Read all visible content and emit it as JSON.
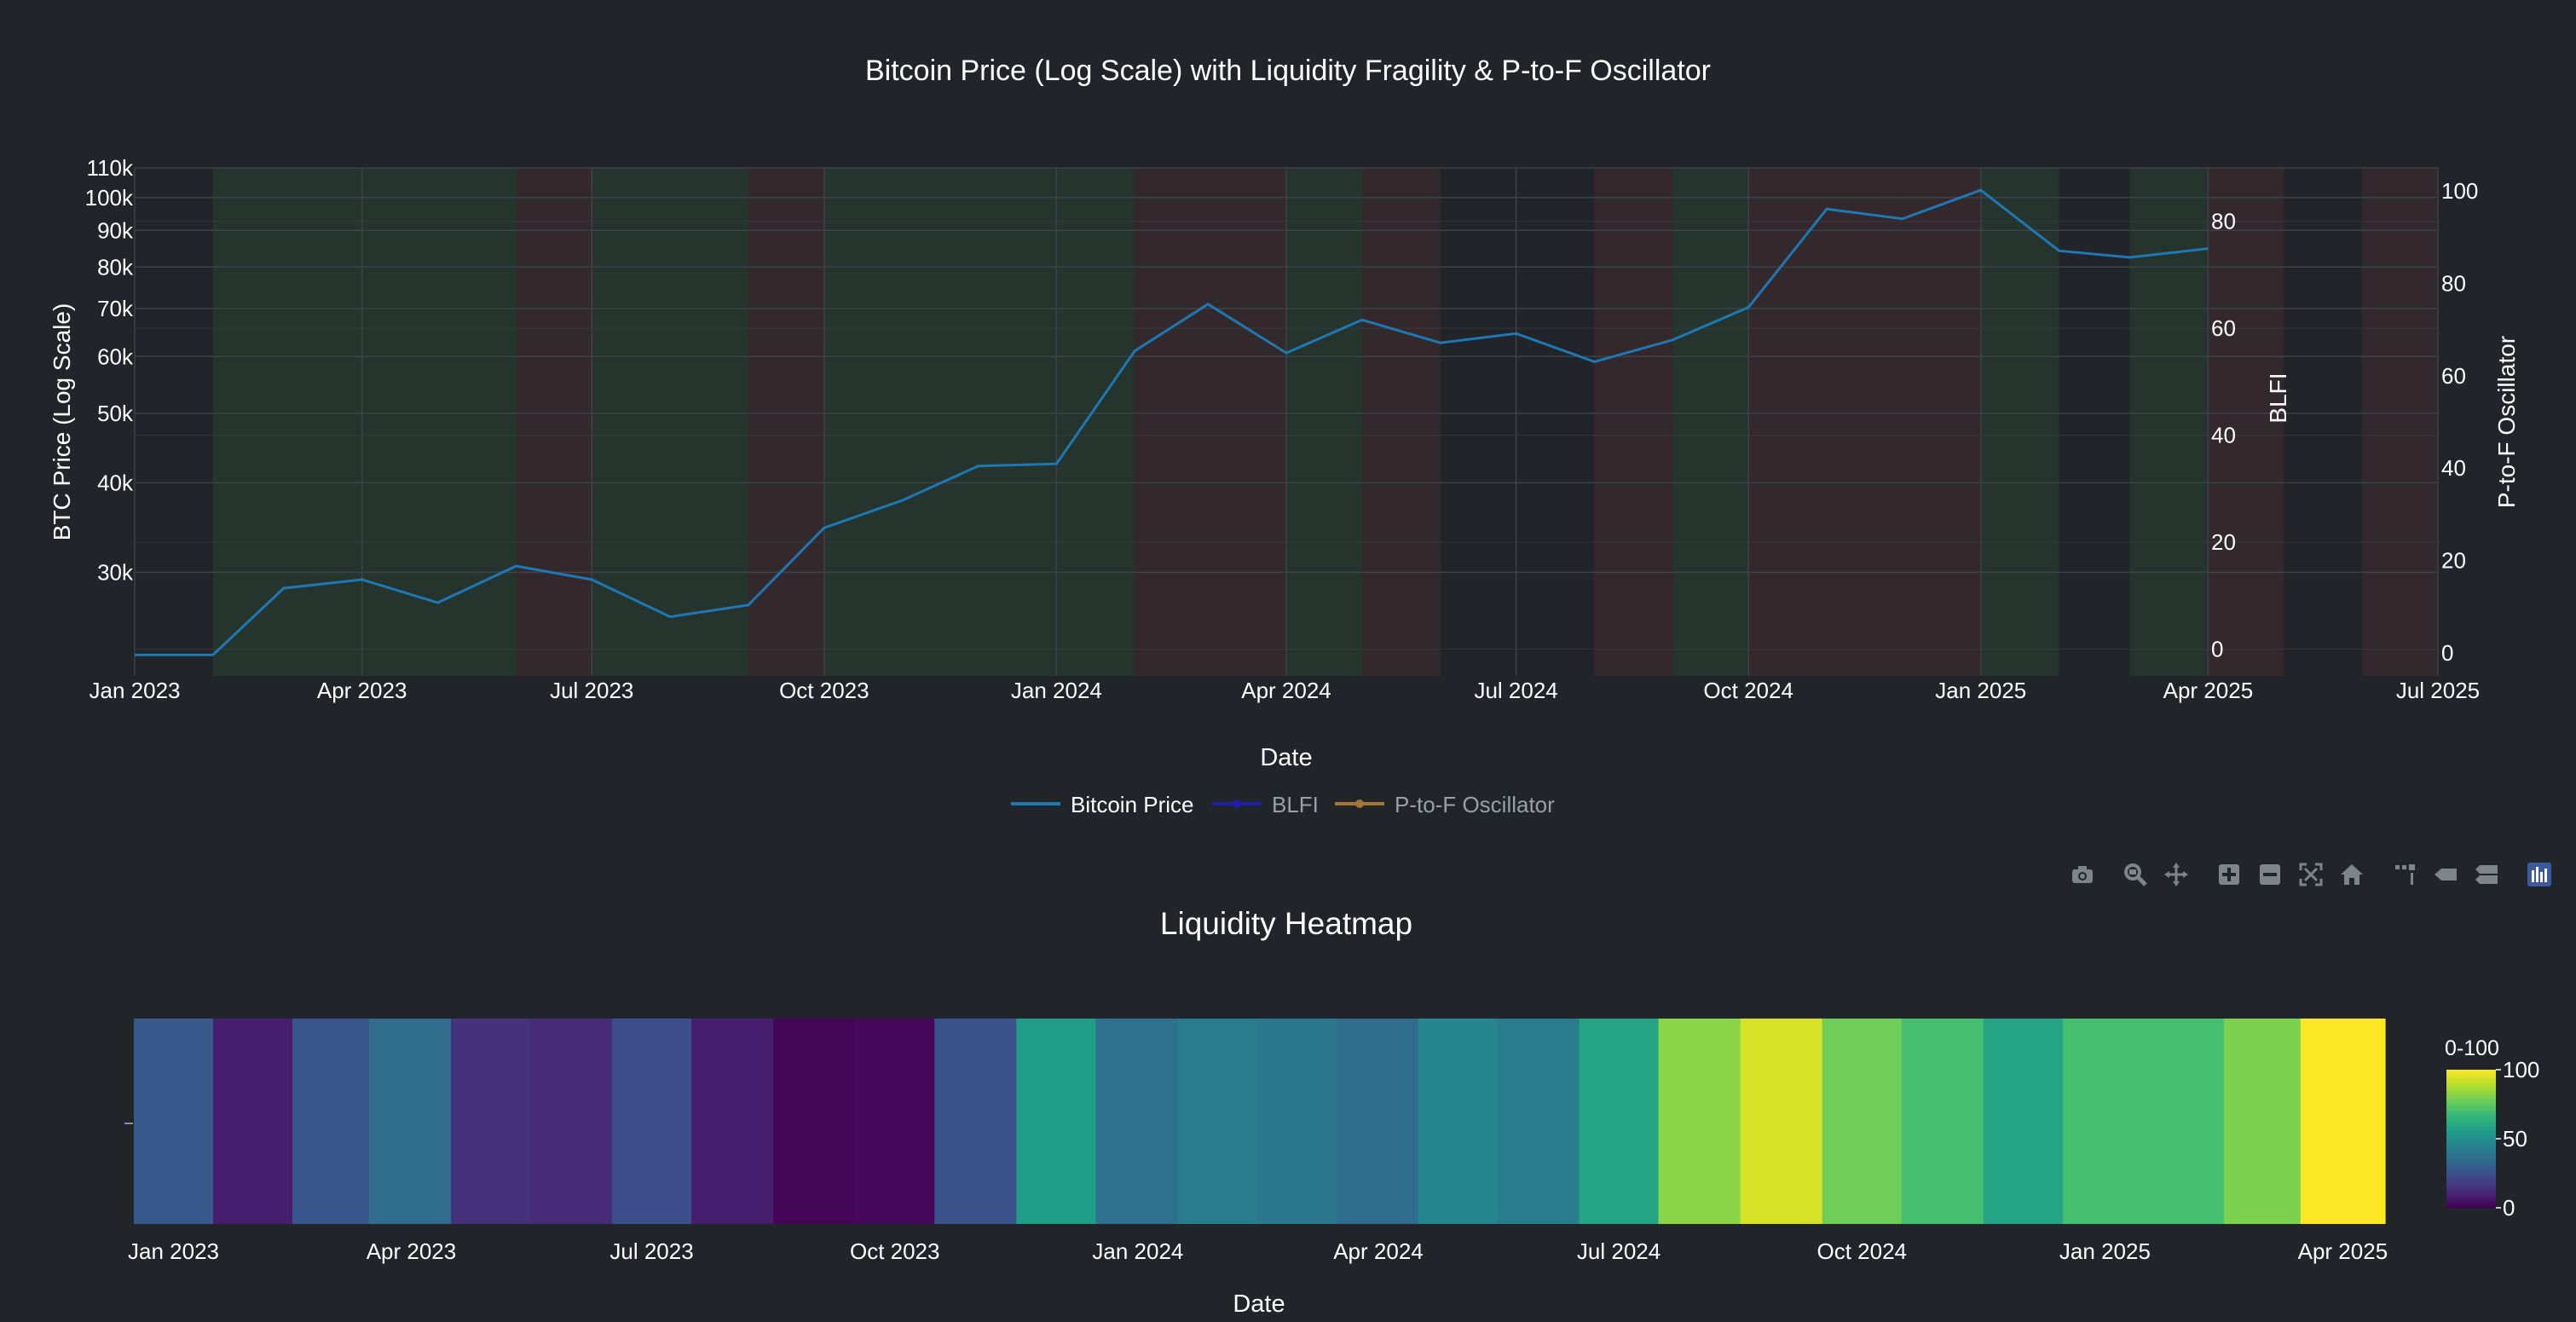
{
  "colors": {
    "background": "#212428",
    "grid": "#3d4148",
    "text": "#ffffff",
    "price_line": "#1f77b4",
    "blfi_line": "#1f1fa8",
    "oscillator_line": "#a07838",
    "band_green": "#2f5a3a",
    "band_red": "#5a3535",
    "legend_inactive_text": "#9aa0a6",
    "modebar_icon": "#7f8489",
    "modebar_active": "#3b5b9e"
  },
  "modebar": {
    "icons": [
      "camera-icon",
      "zoom-icon",
      "pan-icon",
      "zoom-in-icon",
      "zoom-out-icon",
      "autoscale-icon",
      "home-icon",
      "spike-lines-icon",
      "hover-closest-icon",
      "hover-compare-icon",
      "plotly-logo-icon"
    ]
  },
  "chart_data": [
    {
      "type": "line",
      "title": "Bitcoin Price (Log Scale) with Liquidity Fragility & P-to-F Oscillator",
      "xlabel": "Date",
      "ylabel": "BTC Price (Log Scale)",
      "y2label": "BLFI",
      "y3label": "P-to-F Oscillator",
      "y_scale": "log",
      "x_range": [
        "2023-01-01",
        "2025-07-01"
      ],
      "x_ticks": [
        "2023-01-01",
        "2023-04-01",
        "2023-07-01",
        "2023-10-01",
        "2024-01-01",
        "2024-04-01",
        "2024-07-01",
        "2024-10-01",
        "2025-01-01",
        "2025-04-01",
        "2025-07-01"
      ],
      "x_tick_labels": [
        "Jan 2023",
        "Apr 2023",
        "Jul 2023",
        "Oct 2023",
        "Jan 2024",
        "Apr 2024",
        "Jul 2024",
        "Oct 2024",
        "Jan 2025",
        "Apr 2025",
        "Jul 2025"
      ],
      "y_ticks": [
        30000,
        40000,
        50000,
        60000,
        70000,
        80000,
        90000,
        100000,
        110000
      ],
      "y_tick_labels": [
        "30k",
        "40k",
        "50k",
        "60k",
        "70k",
        "80k",
        "90k",
        "100k",
        "110k"
      ],
      "y_range": [
        21500,
        110000
      ],
      "y2_ticks": [
        0,
        20,
        40,
        60,
        80
      ],
      "y2_tick_labels": [
        "0",
        "20",
        "40",
        "60",
        "80"
      ],
      "y2_range": [
        -5,
        90
      ],
      "y3_ticks": [
        0,
        20,
        40,
        60,
        80,
        100
      ],
      "y3_tick_labels": [
        "0",
        "20",
        "40",
        "60",
        "80",
        "100"
      ],
      "y3_range": [
        -5,
        105
      ],
      "grid": true,
      "legend_position": "bottom-center",
      "series": [
        {
          "name": "Bitcoin Price",
          "x": [
            "2023-01-01",
            "2023-02-01",
            "2023-03-01",
            "2023-04-01",
            "2023-05-01",
            "2023-06-01",
            "2023-07-01",
            "2023-08-01",
            "2023-09-01",
            "2023-10-01",
            "2023-11-01",
            "2023-12-01",
            "2024-01-01",
            "2024-02-01",
            "2024-03-01",
            "2024-04-01",
            "2024-05-01",
            "2024-06-01",
            "2024-07-01",
            "2024-08-01",
            "2024-09-01",
            "2024-10-01",
            "2024-11-01",
            "2024-12-01",
            "2025-01-01",
            "2025-02-01",
            "2025-03-01",
            "2025-04-01"
          ],
          "y": [
            23000,
            23000,
            28500,
            29300,
            27200,
            30600,
            29300,
            26000,
            27000,
            34600,
            37800,
            42200,
            42500,
            61100,
            71000,
            60700,
            67500,
            62700,
            64600,
            59000,
            63300,
            70300,
            96400,
            93400,
            102400,
            84300,
            82500,
            84900
          ],
          "visible": true
        },
        {
          "name": "BLFI",
          "visible": "legendonly"
        },
        {
          "name": "P-to-F Oscillator",
          "visible": "legendonly"
        }
      ],
      "background_bands": [
        {
          "start": "2023-01-01",
          "end": "2023-02-01",
          "regime": "neutral"
        },
        {
          "start": "2023-02-01",
          "end": "2023-06-01",
          "regime": "green"
        },
        {
          "start": "2023-06-01",
          "end": "2023-07-01",
          "regime": "red"
        },
        {
          "start": "2023-07-01",
          "end": "2023-09-01",
          "regime": "green"
        },
        {
          "start": "2023-09-01",
          "end": "2023-10-01",
          "regime": "red"
        },
        {
          "start": "2023-10-01",
          "end": "2024-02-01",
          "regime": "green"
        },
        {
          "start": "2024-02-01",
          "end": "2024-04-01",
          "regime": "red"
        },
        {
          "start": "2024-04-01",
          "end": "2024-05-01",
          "regime": "green"
        },
        {
          "start": "2024-05-01",
          "end": "2024-06-01",
          "regime": "red"
        },
        {
          "start": "2024-06-01",
          "end": "2024-08-01",
          "regime": "neutral"
        },
        {
          "start": "2024-08-01",
          "end": "2024-09-01",
          "regime": "red"
        },
        {
          "start": "2024-09-01",
          "end": "2024-10-01",
          "regime": "green"
        },
        {
          "start": "2024-10-01",
          "end": "2025-01-01",
          "regime": "red"
        },
        {
          "start": "2025-01-01",
          "end": "2025-02-01",
          "regime": "green"
        },
        {
          "start": "2025-02-01",
          "end": "2025-03-01",
          "regime": "neutral"
        },
        {
          "start": "2025-03-01",
          "end": "2025-04-01",
          "regime": "green"
        },
        {
          "start": "2025-04-01",
          "end": "2025-05-01",
          "regime": "red"
        },
        {
          "start": "2025-05-01",
          "end": "2025-06-01",
          "regime": "neutral"
        },
        {
          "start": "2025-06-01",
          "end": "2025-07-01",
          "regime": "red"
        }
      ]
    },
    {
      "type": "heatmap",
      "title": "Liquidity Heatmap",
      "xlabel": "Date",
      "x_range": [
        "2022-12-17",
        "2025-04-17"
      ],
      "x_ticks": [
        "2023-01-01",
        "2023-04-01",
        "2023-07-01",
        "2023-10-01",
        "2024-01-01",
        "2024-04-01",
        "2024-07-01",
        "2024-10-01",
        "2025-01-01",
        "2025-04-01"
      ],
      "x_tick_labels": [
        "Jan 2023",
        "Apr 2023",
        "Jul 2023",
        "Oct 2023",
        "Jan 2024",
        "Apr 2024",
        "Jul 2024",
        "Oct 2024",
        "Jan 2025",
        "Apr 2025"
      ],
      "colorscale": "Viridis",
      "colorbar_title": "0-100",
      "colorbar_ticks": [
        0,
        50,
        100
      ],
      "colorbar_tick_labels": [
        "0",
        "50",
        "100"
      ],
      "x": [
        "2023-01-01",
        "2023-02-01",
        "2023-03-01",
        "2023-04-01",
        "2023-05-01",
        "2023-06-01",
        "2023-07-01",
        "2023-08-01",
        "2023-09-01",
        "2023-10-01",
        "2023-11-01",
        "2023-12-01",
        "2024-01-01",
        "2024-02-01",
        "2024-03-01",
        "2024-04-01",
        "2024-05-01",
        "2024-06-01",
        "2024-07-01",
        "2024-08-01",
        "2024-09-01",
        "2024-10-01",
        "2024-11-01",
        "2024-12-01",
        "2025-01-01",
        "2025-02-01",
        "2025-03-01",
        "2025-04-01"
      ],
      "values": [
        28,
        8,
        27,
        35,
        14,
        12,
        24,
        8,
        1,
        2,
        25,
        55,
        37,
        42,
        40,
        35,
        46,
        42,
        58,
        82,
        94,
        78,
        70,
        58,
        70,
        70,
        80,
        100
      ]
    }
  ]
}
